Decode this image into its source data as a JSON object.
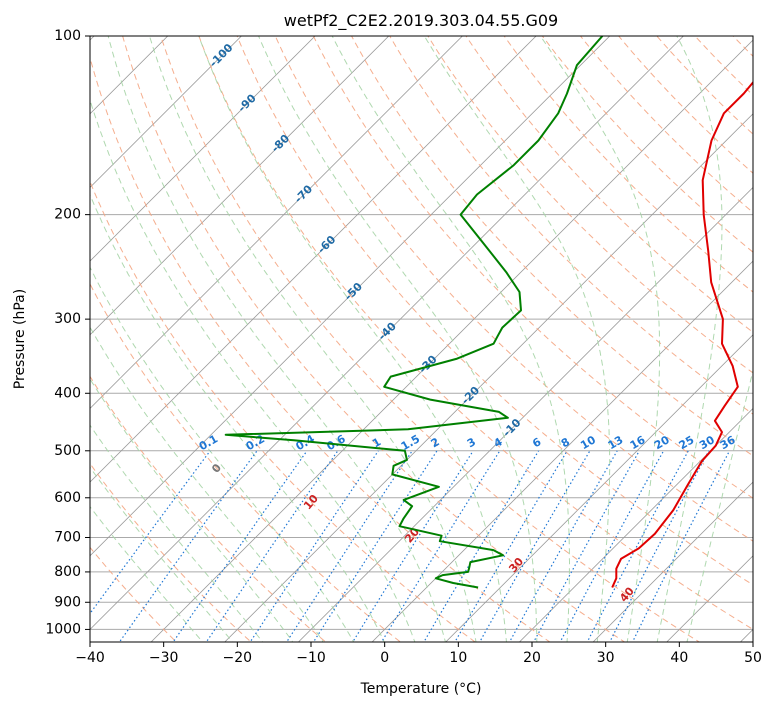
{
  "chart_data": {
    "type": "line",
    "subtype": "skew-t log-p diagram",
    "title": "wetPf2_C2E2.2019.303.04.55.G09",
    "xlabel": "Temperature (°C)",
    "ylabel": "Pressure (hPa)",
    "xlim": [
      -40,
      50
    ],
    "ylim": [
      1050,
      100
    ],
    "y_scale": "log",
    "x_ticks": [
      -40,
      -30,
      -20,
      -10,
      0,
      10,
      20,
      30,
      40,
      50
    ],
    "x_tick_labels": [
      "−40",
      "−30",
      "−20",
      "−10",
      "0",
      "10",
      "20",
      "30",
      "40",
      "50"
    ],
    "y_ticks": [
      1000,
      900,
      800,
      700,
      600,
      500,
      400,
      300,
      200,
      100
    ],
    "y_tick_labels": [
      "1000",
      "900",
      "800",
      "700",
      "600",
      "500",
      "400",
      "300",
      "200",
      "100"
    ],
    "grid": true,
    "colors": {
      "temperature": "#e00000",
      "dewpoint": "#008000",
      "isotherm": "#999999",
      "dry_adiabat": "#f4a582",
      "moist_adiabat": "#a6d4a6",
      "mixing_ratio": "#1f77d4",
      "isobar": "#aaaaaa"
    },
    "series": [
      {
        "key": "temperature",
        "points": [
          {
            "p": 850,
            "t": 25.2
          },
          {
            "p": 820,
            "t": 24.5
          },
          {
            "p": 790,
            "t": 23.2
          },
          {
            "p": 760,
            "t": 22.5
          },
          {
            "p": 730,
            "t": 23.5
          },
          {
            "p": 690,
            "t": 23.7
          },
          {
            "p": 630,
            "t": 23.0
          },
          {
            "p": 570,
            "t": 21.5
          },
          {
            "p": 520,
            "t": 20.2
          },
          {
            "p": 490,
            "t": 20.0
          },
          {
            "p": 465,
            "t": 19.0
          },
          {
            "p": 445,
            "t": 16.5
          },
          {
            "p": 420,
            "t": 15.8
          },
          {
            "p": 390,
            "t": 15.0
          },
          {
            "p": 360,
            "t": 11.5
          },
          {
            "p": 330,
            "t": 7.0
          },
          {
            "p": 300,
            "t": 3.8
          },
          {
            "p": 260,
            "t": -2.8
          },
          {
            "p": 230,
            "t": -7.5
          },
          {
            "p": 200,
            "t": -13.0
          },
          {
            "p": 175,
            "t": -17.8
          },
          {
            "p": 150,
            "t": -22.0
          },
          {
            "p": 135,
            "t": -24.0
          },
          {
            "p": 125,
            "t": -24.0
          },
          {
            "p": 115,
            "t": -24.5
          },
          {
            "p": 105,
            "t": -27.0
          },
          {
            "p": 100,
            "t": -28.5
          }
        ]
      },
      {
        "key": "dewpoint",
        "points": [
          {
            "p": 850,
            "t": 7.0
          },
          {
            "p": 835,
            "t": 3.0
          },
          {
            "p": 820,
            "t": 0.0
          },
          {
            "p": 810,
            "t": 0.5
          },
          {
            "p": 800,
            "t": 3.5
          },
          {
            "p": 790,
            "t": 3.2
          },
          {
            "p": 770,
            "t": 2.5
          },
          {
            "p": 750,
            "t": 6.0
          },
          {
            "p": 735,
            "t": 4.0
          },
          {
            "p": 710,
            "t": -4.5
          },
          {
            "p": 695,
            "t": -5.0
          },
          {
            "p": 670,
            "t": -12.0
          },
          {
            "p": 650,
            "t": -12.5
          },
          {
            "p": 620,
            "t": -13.0
          },
          {
            "p": 605,
            "t": -15.0
          },
          {
            "p": 590,
            "t": -13.5
          },
          {
            "p": 575,
            "t": -12.0
          },
          {
            "p": 548,
            "t": -20.0
          },
          {
            "p": 530,
            "t": -21.0
          },
          {
            "p": 518,
            "t": -20.0
          },
          {
            "p": 500,
            "t": -21.5
          },
          {
            "p": 480,
            "t": -38.0
          },
          {
            "p": 470,
            "t": -48.0
          },
          {
            "p": 460,
            "t": -24.0
          },
          {
            "p": 440,
            "t": -12.0
          },
          {
            "p": 430,
            "t": -14.0
          },
          {
            "p": 410,
            "t": -25.0
          },
          {
            "p": 390,
            "t": -33.0
          },
          {
            "p": 375,
            "t": -33.5
          },
          {
            "p": 350,
            "t": -27.0
          },
          {
            "p": 330,
            "t": -24.0
          },
          {
            "p": 320,
            "t": -24.5
          },
          {
            "p": 310,
            "t": -25.0
          },
          {
            "p": 290,
            "t": -24.8
          },
          {
            "p": 270,
            "t": -27.5
          },
          {
            "p": 250,
            "t": -32.0
          },
          {
            "p": 220,
            "t": -40.0
          },
          {
            "p": 200,
            "t": -46.0
          },
          {
            "p": 185,
            "t": -46.5
          },
          {
            "p": 165,
            "t": -45.5
          },
          {
            "p": 150,
            "t": -45.5
          },
          {
            "p": 135,
            "t": -46.5
          },
          {
            "p": 125,
            "t": -48.0
          },
          {
            "p": 112,
            "t": -50.5
          },
          {
            "p": 100,
            "t": -51.0
          }
        ]
      }
    ],
    "dry_adiabat_labels": [
      {
        "text": "0",
        "theta": 0
      },
      {
        "text": "10",
        "theta": 10
      },
      {
        "text": "20",
        "theta": 20
      },
      {
        "text": "30",
        "theta": 30
      },
      {
        "text": "40",
        "theta": 40
      }
    ],
    "isotherm_labels": [
      "-100",
      "-90",
      "-80",
      "-70",
      "-60",
      "-50",
      "-40",
      "-30",
      "-20",
      "-10"
    ],
    "mixing_ratio_labels": [
      "0.1",
      "0.2",
      "0.4",
      "0.6",
      "1",
      "1.5",
      "2",
      "3",
      "4",
      "6",
      "8",
      "10",
      "13",
      "16",
      "20",
      "25",
      "30",
      "36"
    ],
    "mixing_ratio_values": [
      0.1,
      0.2,
      0.4,
      0.6,
      1,
      1.5,
      2,
      3,
      4,
      6,
      8,
      10,
      13,
      16,
      20,
      25,
      30,
      36
    ]
  }
}
